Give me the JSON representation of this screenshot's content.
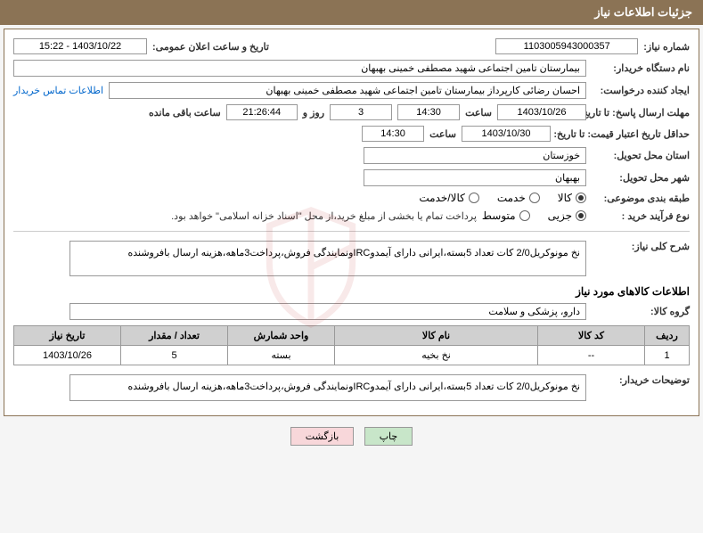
{
  "header": {
    "title": "جزئیات اطلاعات نیاز"
  },
  "fields": {
    "need_number": {
      "label": "شماره نیاز:",
      "value": "1103005943000357"
    },
    "announce_date": {
      "label": "تاریخ و ساعت اعلان عمومی:",
      "value": "1403/10/22 - 15:22"
    },
    "buyer_org": {
      "label": "نام دستگاه خریدار:",
      "value": "بیمارستان تامین اجتماعی شهید مصطفی خمینی بهبهان"
    },
    "requester": {
      "label": "ایجاد کننده درخواست:",
      "value": "احسان رضائی کارپرداز بیمارستان تامین اجتماعی شهید مصطفی خمینی بهبهان"
    },
    "contact_link": "اطلاعات تماس خریدار",
    "deadline_send": {
      "label": "مهلت ارسال پاسخ: تا تاریخ:",
      "date": "1403/10/26",
      "time_label": "ساعت",
      "time": "14:30",
      "days": "3",
      "days_label": "روز و",
      "countdown": "21:26:44",
      "remaining_label": "ساعت باقی مانده"
    },
    "deadline_price": {
      "label": "حداقل تاریخ اعتبار قیمت: تا تاریخ:",
      "date": "1403/10/30",
      "time_label": "ساعت",
      "time": "14:30"
    },
    "province": {
      "label": "استان محل تحویل:",
      "value": "خوزستان"
    },
    "city": {
      "label": "شهر محل تحویل:",
      "value": "بهبهان"
    },
    "category": {
      "label": "طبقه بندی موضوعی:",
      "options": [
        "کالا",
        "خدمت",
        "کالا/خدمت"
      ],
      "selected": 0
    },
    "purchase_type": {
      "label": "نوع فرآیند خرید :",
      "options": [
        "جزیی",
        "متوسط"
      ],
      "selected": 0,
      "note": "پرداخت تمام یا بخشی از مبلغ خرید،از محل \"اسناد خزانه اسلامی\" خواهد بود."
    }
  },
  "description": {
    "label": "شرح کلی نیاز:",
    "text": "نخ مونوکریل2/0 کات تعداد 5بسته،ایرانی دارای آیمدوIRCونمایندگی فروش،پرداخت3ماهه،هزینه ارسال بافروشنده"
  },
  "goods_section": {
    "title": "اطلاعات کالاهای مورد نیاز",
    "group": {
      "label": "گروه کالا:",
      "value": "دارو، پزشکی و سلامت"
    }
  },
  "table": {
    "headers": [
      "ردیف",
      "کد کالا",
      "نام کالا",
      "واحد شمارش",
      "تعداد / مقدار",
      "تاریخ نیاز"
    ],
    "widths": [
      "50px",
      "120px",
      "auto",
      "120px",
      "120px",
      "120px"
    ],
    "rows": [
      {
        "cells": [
          "1",
          "--",
          "نخ بخیه",
          "بسته",
          "5",
          "1403/10/26"
        ]
      }
    ]
  },
  "buyer_notes": {
    "label": "توضیحات خریدار:",
    "text": "نخ مونوکریل2/0 کات تعداد 5بسته،ایرانی دارای آیمدوIRCونمایندگی فروش،پرداخت3ماهه،هزینه ارسال بافروشنده"
  },
  "buttons": {
    "print": "چاپ",
    "back": "بازگشت"
  },
  "colors": {
    "header_bg": "#8b7355",
    "table_header_bg": "#d0d0d0",
    "btn_green": "#c8e6c9",
    "btn_pink": "#f8d7da"
  }
}
